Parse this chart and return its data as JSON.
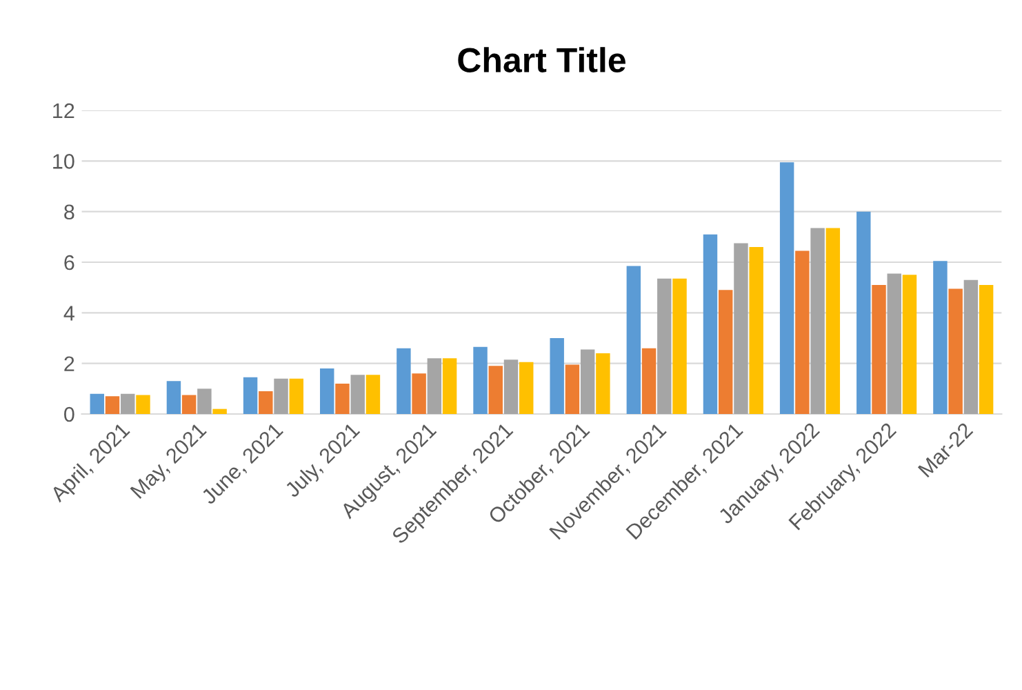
{
  "chart_data": {
    "type": "bar",
    "title": "Chart Title",
    "categories": [
      "April, 2021",
      "May, 2021",
      "June, 2021",
      "July, 2021",
      "August, 2021",
      "September, 2021",
      "October, 2021",
      "November, 2021",
      "December, 2021",
      "January, 2022",
      "February, 2022",
      "Mar-22"
    ],
    "series": [
      {
        "color": "#5b9bd5",
        "values": [
          0.8,
          1.3,
          1.45,
          1.8,
          2.6,
          2.65,
          3.0,
          5.85,
          7.1,
          9.95,
          8.0,
          6.05
        ]
      },
      {
        "color": "#ed7d31",
        "values": [
          0.7,
          0.75,
          0.9,
          1.2,
          1.6,
          1.9,
          1.95,
          2.6,
          4.9,
          6.45,
          5.1,
          4.95
        ]
      },
      {
        "color": "#a5a5a5",
        "values": [
          0.8,
          1.0,
          1.4,
          1.55,
          2.2,
          2.15,
          2.55,
          5.35,
          6.75,
          7.35,
          5.55,
          5.3
        ]
      },
      {
        "color": "#ffc000",
        "values": [
          0.75,
          0.2,
          1.4,
          1.55,
          2.2,
          2.05,
          2.4,
          5.35,
          6.6,
          7.35,
          5.5,
          5.1
        ]
      }
    ],
    "ylim": [
      0,
      12
    ],
    "yticks": [
      0,
      2,
      4,
      6,
      8,
      10,
      12
    ],
    "grid": "y"
  }
}
